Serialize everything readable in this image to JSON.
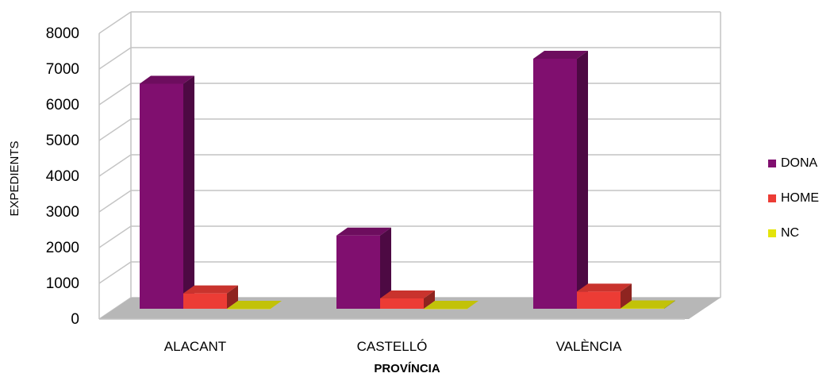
{
  "chart_data": {
    "type": "bar",
    "categories": [
      "ALACANT",
      "CASTELLÓ",
      "VALÈNCIA"
    ],
    "series": [
      {
        "name": "DONA",
        "values": [
          6300,
          2050,
          7000
        ],
        "color": "#800f6f"
      },
      {
        "name": "HOME",
        "values": [
          430,
          290,
          480
        ],
        "color": "#ec3c35"
      },
      {
        "name": "NC",
        "values": [
          0,
          0,
          10
        ],
        "color": "#e4e40b"
      }
    ],
    "title": "",
    "xlabel": "PROVÍNCIA",
    "ylabel": "EXPEDIENTS",
    "ylim": [
      0,
      8000
    ],
    "yticks": [
      "0",
      "1000",
      "2000",
      "3000",
      "4000",
      "5000",
      "6000",
      "7000",
      "8000"
    ],
    "grid": true,
    "legend_position": "right",
    "style": "3d-column"
  }
}
